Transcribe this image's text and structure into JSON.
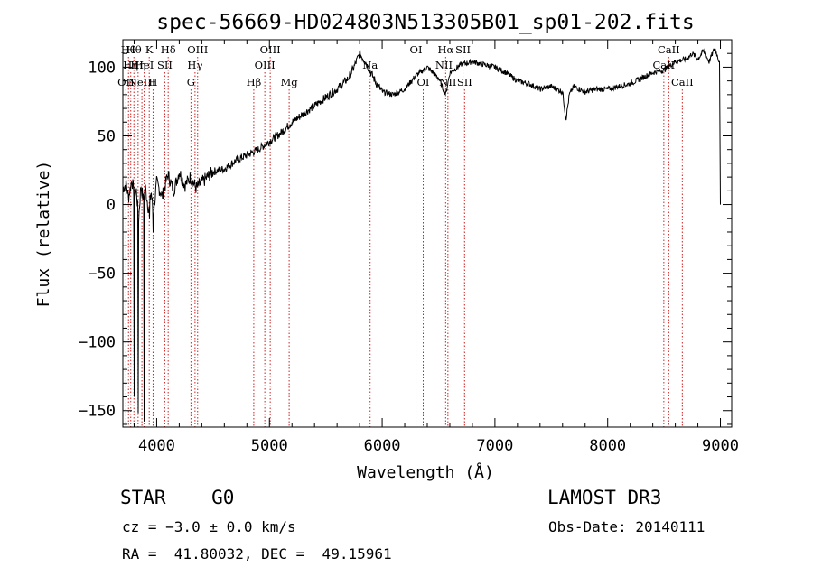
{
  "chart_data": {
    "type": "line",
    "title": "spec-56669-HD024803N513305B01_sp01-202.fits",
    "xlabel": "Wavelength (Å)",
    "ylabel": "Flux (relative)",
    "xlim": [
      3700,
      9100
    ],
    "ylim": [
      -162,
      120
    ],
    "xticks": [
      4000,
      5000,
      6000,
      7000,
      8000,
      9000
    ],
    "yticks": [
      -150,
      -100,
      -50,
      0,
      50,
      100
    ],
    "ytick_labels": [
      "−150",
      "−100",
      "−50",
      "0",
      "50",
      "100"
    ],
    "series": [
      {
        "name": "flux",
        "x": [
          3700,
          3730,
          3750,
          3780,
          3800,
          3820,
          3840,
          3860,
          3880,
          3900,
          3930,
          3950,
          3970,
          4000,
          4050,
          4100,
          4150,
          4200,
          4250,
          4300,
          4350,
          4400,
          4500,
          4600,
          4700,
          4800,
          4900,
          5000,
          5100,
          5200,
          5300,
          5400,
          5500,
          5600,
          5700,
          5750,
          5800,
          5850,
          5900,
          5950,
          6000,
          6100,
          6200,
          6300,
          6400,
          6500,
          6563,
          6600,
          6700,
          6800,
          6900,
          7000,
          7100,
          7200,
          7300,
          7400,
          7500,
          7600,
          7630,
          7660,
          7700,
          7800,
          7900,
          8000,
          8100,
          8200,
          8300,
          8400,
          8500,
          8600,
          8700,
          8750,
          8800,
          8850,
          8900,
          8950,
          8990,
          9000
        ],
        "y": [
          12,
          15,
          5,
          18,
          8,
          10,
          -10,
          14,
          4,
          12,
          -5,
          10,
          -8,
          16,
          6,
          22,
          10,
          24,
          14,
          20,
          12,
          16,
          24,
          26,
          32,
          36,
          40,
          46,
          52,
          60,
          66,
          72,
          78,
          84,
          92,
          100,
          110,
          104,
          96,
          88,
          82,
          80,
          84,
          94,
          100,
          92,
          80,
          96,
          102,
          104,
          102,
          100,
          96,
          90,
          88,
          84,
          86,
          82,
          62,
          80,
          86,
          82,
          84,
          84,
          86,
          88,
          92,
          96,
          98,
          104,
          106,
          110,
          106,
          112,
          104,
          114,
          104,
          0
        ]
      }
    ],
    "spikes": [
      {
        "x": 3798,
        "y": -140
      },
      {
        "x": 3835,
        "y": -152
      },
      {
        "x": 3889,
        "y": -158
      },
      {
        "x": 3934,
        "y": -10
      },
      {
        "x": 3968,
        "y": -20
      }
    ],
    "lines": [
      {
        "x": 3750,
        "row": 1,
        "label": "Hθ"
      },
      {
        "x": 3770,
        "row": 2,
        "label": "Hη"
      },
      {
        "x": 3727,
        "row": 3,
        "label": "OII"
      },
      {
        "x": 3798,
        "row": 1,
        "label": "Hθ"
      },
      {
        "x": 3835,
        "row": 2,
        "label": "Hη"
      },
      {
        "x": 3869,
        "row": 3,
        "label": "NeIII"
      },
      {
        "x": 3889,
        "row": 2,
        "label": "HeI"
      },
      {
        "x": 3934,
        "row": 1,
        "label": "K"
      },
      {
        "x": 3968,
        "row": 3,
        "label": "H"
      },
      {
        "x": 4072,
        "row": 2,
        "label": "SII"
      },
      {
        "x": 4102,
        "row": 1,
        "label": "Hδ"
      },
      {
        "x": 4304,
        "row": 3,
        "label": "G"
      },
      {
        "x": 4340,
        "row": 2,
        "label": "Hγ"
      },
      {
        "x": 4363,
        "row": 1,
        "label": "OIII"
      },
      {
        "x": 4861,
        "row": 3,
        "label": "Hβ"
      },
      {
        "x": 4959,
        "row": 2,
        "label": "OIII"
      },
      {
        "x": 5007,
        "row": 1,
        "label": "OIII"
      },
      {
        "x": 5175,
        "row": 3,
        "label": "Mg"
      },
      {
        "x": 5893,
        "row": 2,
        "label": "Na"
      },
      {
        "x": 6300,
        "row": 1,
        "label": "OI"
      },
      {
        "x": 6364,
        "row": 3,
        "label": "OI"
      },
      {
        "x": 6548,
        "row": 2,
        "label": "NII"
      },
      {
        "x": 6563,
        "row": 1,
        "label": "Hα"
      },
      {
        "x": 6583,
        "row": 3,
        "label": "NII"
      },
      {
        "x": 6717,
        "row": 1,
        "label": "SII"
      },
      {
        "x": 6731,
        "row": 3,
        "label": "SII"
      },
      {
        "x": 8498,
        "row": 2,
        "label": "CaII"
      },
      {
        "x": 8542,
        "row": 1,
        "label": "CaII"
      },
      {
        "x": 8662,
        "row": 3,
        "label": "CaII"
      }
    ]
  },
  "info": {
    "class_line": "STAR    G0",
    "survey": "LAMOST DR3",
    "cz_line": "cz = −3.0 ± 0.0 km/s",
    "obs_date": "Obs-Date: 20140111",
    "radec_line": "RA =  41.80032, DEC =  49.15961"
  },
  "colors": {
    "axis": "#000000",
    "line_marker": "#cc2222"
  }
}
